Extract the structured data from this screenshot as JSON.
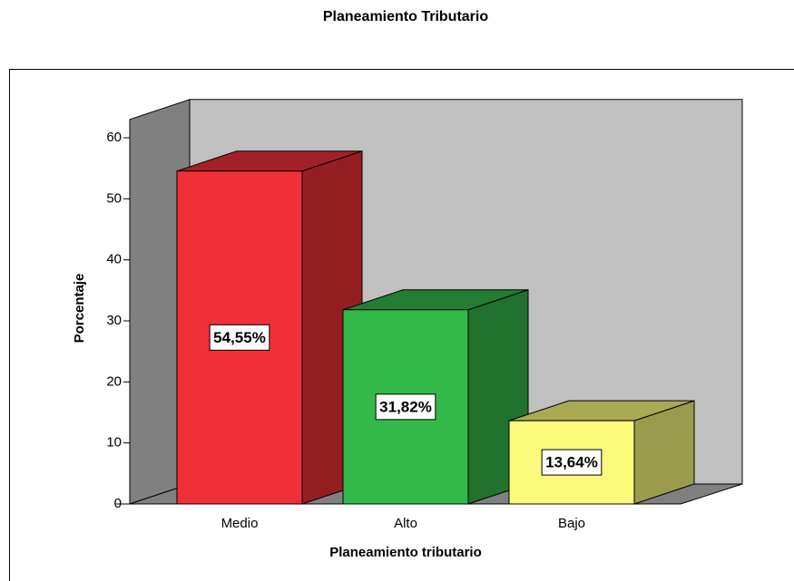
{
  "chart_data": {
    "type": "bar3d",
    "title": "Planeamiento Tributario",
    "x_label": "Planeamiento tributario",
    "y_label": "Porcentaje",
    "categories": [
      "Medio",
      "Alto",
      "Bajo"
    ],
    "values": [
      54.55,
      31.82,
      13.64
    ],
    "value_labels": [
      "54,55%",
      "31,82%",
      "13,64%"
    ],
    "colors": [
      "#f03038",
      "#33b84a",
      "#fafa7c"
    ],
    "ylim": [
      0,
      63
    ],
    "yticks": [
      0,
      10,
      20,
      30,
      40,
      50,
      60
    ]
  }
}
